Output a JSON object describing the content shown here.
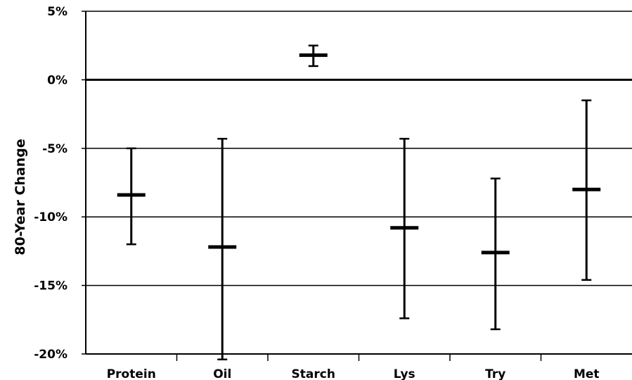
{
  "chart_data": {
    "type": "scatter",
    "ylabel": "80-Year Change",
    "xlabel": "",
    "title": "",
    "categories": [
      "Protein",
      "Oil",
      "Starch",
      "Lys",
      "Try",
      "Met"
    ],
    "ylim": [
      -20,
      5
    ],
    "yticks": [
      5,
      0,
      -5,
      -10,
      -15,
      -20
    ],
    "ytick_labels": [
      "5%",
      "0%",
      "-5%",
      "-10%",
      "-15%",
      "-20%"
    ],
    "grid": true,
    "series": [
      {
        "values": [
          -8.4,
          -12.2,
          1.8,
          -10.8,
          -12.6,
          -8.0
        ],
        "lower": [
          -12.0,
          -20.4,
          1.0,
          -17.4,
          -18.2,
          -14.6
        ],
        "upper": [
          -5.0,
          -4.3,
          2.5,
          -4.3,
          -7.2,
          -1.5
        ]
      }
    ],
    "colors": {
      "marks": "#000000",
      "grid": "#000000"
    }
  }
}
